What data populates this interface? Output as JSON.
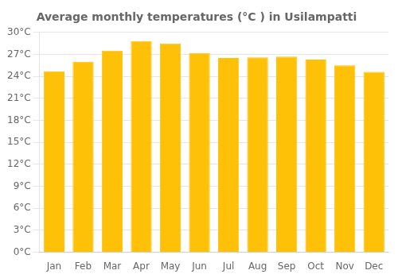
{
  "chart_data": {
    "type": "bar",
    "title": "Average monthly temperatures (°C ) in Usilampatti",
    "categories": [
      "Jan",
      "Feb",
      "Mar",
      "Apr",
      "May",
      "Jun",
      "Jul",
      "Aug",
      "Sep",
      "Oct",
      "Nov",
      "Dec"
    ],
    "values": [
      24.7,
      26.0,
      27.5,
      28.8,
      28.5,
      27.2,
      26.5,
      26.6,
      26.7,
      26.3,
      25.5,
      24.6
    ],
    "color": "#FFC107",
    "ylim": [
      0,
      30
    ],
    "yticks": [
      {
        "value": 0,
        "label": "0°C"
      },
      {
        "value": 3,
        "label": "3°C"
      },
      {
        "value": 6,
        "label": "6°C"
      },
      {
        "value": 9,
        "label": "9°C"
      },
      {
        "value": 12,
        "label": "12°C"
      },
      {
        "value": 15,
        "label": "15°C"
      },
      {
        "value": 18,
        "label": "18°C"
      },
      {
        "value": 21,
        "label": "21°C"
      },
      {
        "value": 24,
        "label": "24°C"
      },
      {
        "value": 27,
        "label": "27°C"
      },
      {
        "value": 30,
        "label": "30°C"
      }
    ],
    "grid": true
  }
}
